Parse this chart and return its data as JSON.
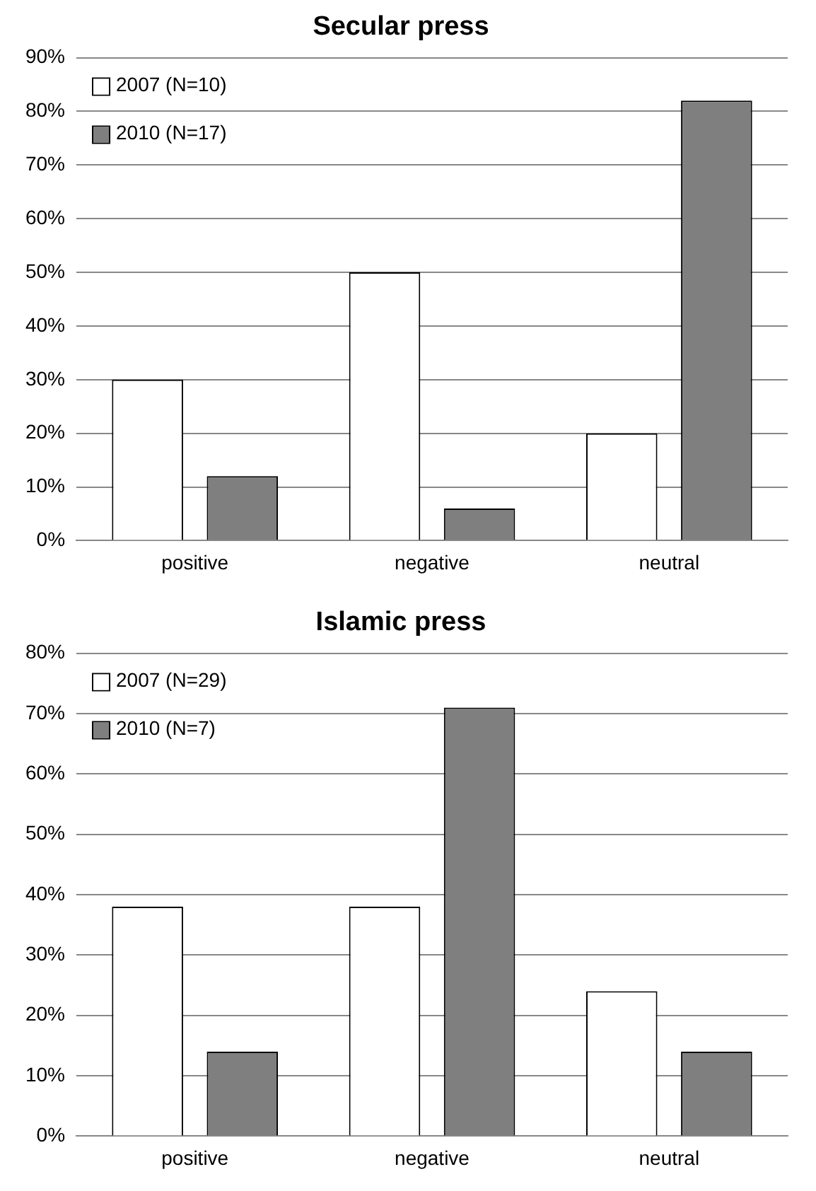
{
  "chart_data": [
    {
      "type": "bar",
      "title": "Secular press",
      "categories": [
        "positive",
        "negative",
        "neutral"
      ],
      "series": [
        {
          "name": "2007 (N=10)",
          "color": "#ffffff",
          "values": [
            30,
            50,
            20
          ]
        },
        {
          "name": "2010 (N=17)",
          "color": "#7f7f7f",
          "values": [
            12,
            6,
            82
          ]
        }
      ],
      "ylim": [
        0,
        90
      ],
      "yticks": [
        {
          "value": 0,
          "label": "0%"
        },
        {
          "value": 10,
          "label": "10%"
        },
        {
          "value": 20,
          "label": "20%"
        },
        {
          "value": 30,
          "label": "30%"
        },
        {
          "value": 40,
          "label": "40%"
        },
        {
          "value": 50,
          "label": "50%"
        },
        {
          "value": 60,
          "label": "60%"
        },
        {
          "value": 70,
          "label": "70%"
        },
        {
          "value": 80,
          "label": "80%"
        },
        {
          "value": 90,
          "label": "90%"
        }
      ],
      "grid": "y",
      "legend": "top left"
    },
    {
      "type": "bar",
      "title": "Islamic press",
      "categories": [
        "positive",
        "negative",
        "neutral"
      ],
      "series": [
        {
          "name": "2007 (N=29)",
          "color": "#ffffff",
          "values": [
            38,
            38,
            24
          ]
        },
        {
          "name": "2010 (N=7)",
          "color": "#7f7f7f",
          "values": [
            14,
            71,
            14
          ]
        }
      ],
      "ylim": [
        0,
        80
      ],
      "yticks": [
        {
          "value": 0,
          "label": "0%"
        },
        {
          "value": 10,
          "label": "10%"
        },
        {
          "value": 20,
          "label": "20%"
        },
        {
          "value": 30,
          "label": "30%"
        },
        {
          "value": 40,
          "label": "40%"
        },
        {
          "value": 50,
          "label": "50%"
        },
        {
          "value": 60,
          "label": "60%"
        },
        {
          "value": 70,
          "label": "70%"
        },
        {
          "value": 80,
          "label": "80%"
        }
      ],
      "grid": "y",
      "legend": "top left"
    }
  ]
}
